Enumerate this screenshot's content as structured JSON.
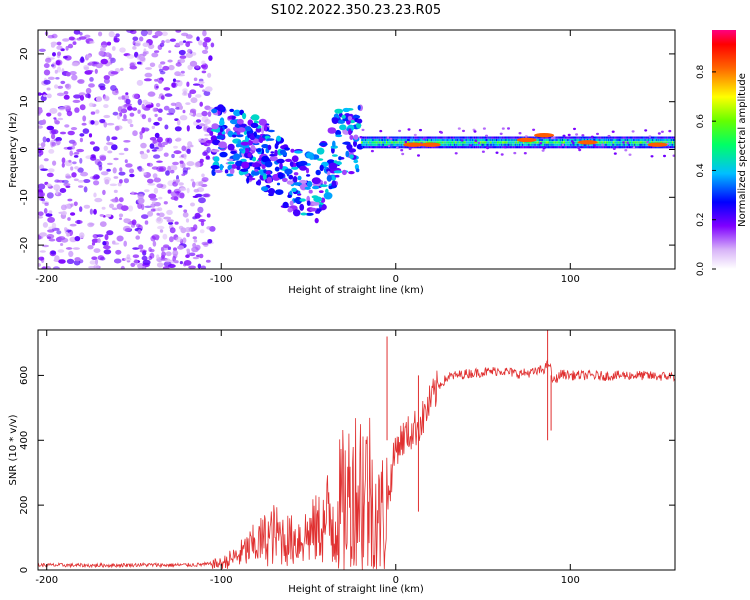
{
  "title": "S102.2022.350.23.23.R05",
  "chart_data": [
    {
      "type": "heatmap",
      "xlabel": "Height of straight line (km)",
      "ylabel": "Frequency (Hz)",
      "xlim": [
        -205,
        160
      ],
      "ylim": [
        -25,
        25
      ],
      "x_ticks": [
        -200,
        -100,
        0,
        100
      ],
      "x_tick_labels": [
        "-200",
        "-100",
        "0",
        "100"
      ],
      "y_ticks": [
        -20,
        -10,
        0,
        10,
        20
      ],
      "y_tick_labels": [
        "-20",
        "-10",
        "0",
        "10",
        "20"
      ],
      "colorbar": {
        "label": "Normalized spectral amplitude",
        "range": [
          0,
          0.97
        ],
        "ticks": [
          0,
          0.2,
          0.4,
          0.6,
          0.8
        ],
        "tick_labels": [
          "0.0",
          "0.2",
          "0.4",
          "0.6",
          "0.8"
        ],
        "colormap": "rainbow (white-violet-blue-cyan-green-yellow-red-magenta)"
      },
      "features": [
        {
          "region": "noise",
          "x_range": [
            -205,
            -105
          ],
          "freq_range": [
            -25,
            25
          ],
          "amplitude": 0.05
        },
        {
          "region": "scattered returns",
          "x_range": [
            -105,
            -20
          ],
          "freq_center": [
            [
              -100,
              2
            ],
            [
              -80,
              0
            ],
            [
              -60,
              -6
            ],
            [
              -45,
              -8
            ],
            [
              -30,
              3
            ]
          ],
          "amplitude": 0.3
        },
        {
          "region": "main band",
          "x_range": [
            -20,
            160
          ],
          "freq_center": 1.5,
          "freq_width": 2,
          "amplitude": 0.55
        },
        {
          "region": "peaks",
          "points": [
            [
              10,
              1
            ],
            [
              20,
              1
            ],
            [
              75,
              2
            ],
            [
              85,
              3
            ],
            [
              110,
              1.5
            ],
            [
              150,
              1
            ]
          ],
          "amplitude": 0.85
        }
      ],
      "grid": false
    },
    {
      "type": "line",
      "xlabel": "Height of straight line (km)",
      "ylabel": "SNR (10 * v/v)",
      "xlim": [
        -205,
        160
      ],
      "ylim": [
        0,
        740
      ],
      "x_ticks": [
        -200,
        -100,
        0,
        100
      ],
      "x_tick_labels": [
        "-200",
        "-100",
        "0",
        "100"
      ],
      "y_ticks": [
        0,
        200,
        400,
        600
      ],
      "y_tick_labels": [
        "0",
        "200",
        "400",
        "600"
      ],
      "series": [
        {
          "color": "#e03030",
          "x": [
            -205,
            -190,
            -175,
            -160,
            -145,
            -130,
            -115,
            -100,
            -90,
            -80,
            -70,
            -60,
            -50,
            -40,
            -30,
            -25,
            -20,
            -15,
            -10,
            -5,
            0,
            5,
            10,
            15,
            20,
            25,
            30,
            40,
            50,
            60,
            70,
            80,
            85,
            88,
            90,
            95,
            100,
            110,
            120,
            130,
            140,
            150,
            160
          ],
          "y": [
            15,
            15,
            14,
            15,
            16,
            15,
            16,
            20,
            45,
            80,
            110,
            90,
            110,
            140,
            200,
            230,
            260,
            240,
            150,
            200,
            380,
            410,
            430,
            460,
            520,
            570,
            595,
            605,
            610,
            615,
            605,
            610,
            620,
            640,
            580,
            605,
            600,
            600,
            598,
            600,
            600,
            597,
            598
          ]
        }
      ],
      "annotations": [
        {
          "x": -5,
          "y": 720,
          "note": "spike"
        },
        {
          "x": 87,
          "y": 740,
          "note": "spike"
        },
        {
          "x": 89,
          "y": 430,
          "note": "dip"
        },
        {
          "x": 13,
          "y": 180,
          "note": "dip"
        }
      ],
      "grid": false
    }
  ]
}
